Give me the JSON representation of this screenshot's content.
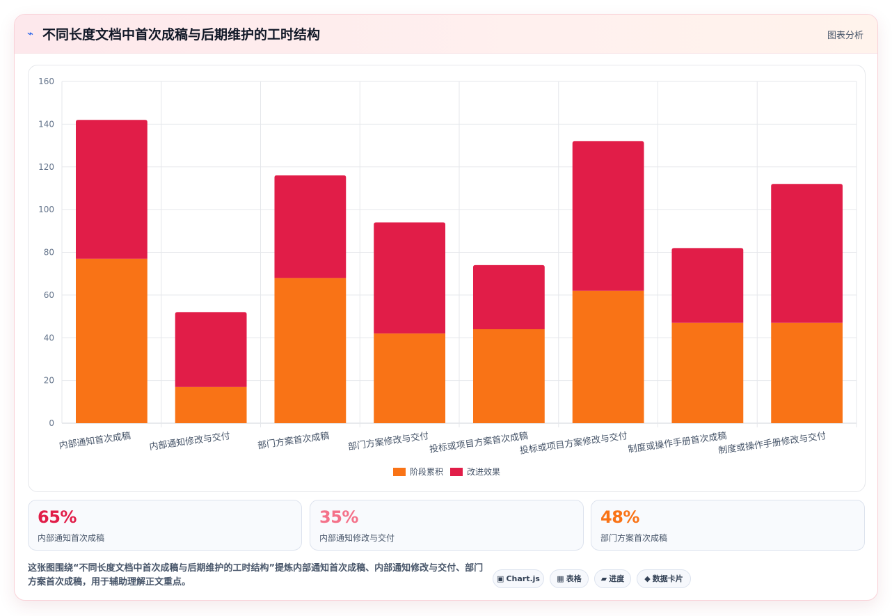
{
  "header": {
    "icon": "⌁",
    "title": "不同长度文档中首次成稿与后期维护的工时结构",
    "tag": "图表分析"
  },
  "chart_data": {
    "type": "bar",
    "stacked": true,
    "categories": [
      "内部通知首次成稿",
      "内部通知修改与交付",
      "部门方案首次成稿",
      "部门方案修改与交付",
      "投标或项目方案首次成稿",
      "投标或项目方案修改与交付",
      "制度或操作手册首次成稿",
      "制度或操作手册修改与交付"
    ],
    "series": [
      {
        "name": "阶段累积",
        "color": "#f97316",
        "values": [
          77,
          17,
          68,
          42,
          44,
          62,
          47,
          47
        ]
      },
      {
        "name": "改进效果",
        "color": "#e11d48",
        "values": [
          65,
          35,
          48,
          52,
          30,
          70,
          35,
          65
        ]
      }
    ],
    "ylim": [
      0,
      160
    ],
    "yticks": [
      0,
      20,
      40,
      60,
      80,
      100,
      120,
      140,
      160
    ],
    "grid": true,
    "legend": "bottom"
  },
  "kpis": [
    {
      "value": "65%",
      "label": "内部通知首次成稿",
      "color": "#e11d48"
    },
    {
      "value": "35%",
      "label": "内部通知修改与交付",
      "color": "#f47189"
    },
    {
      "value": "48%",
      "label": "部门方案首次成稿",
      "color": "#f97316"
    }
  ],
  "summary": "这张图围绕“不同长度文档中首次成稿与后期维护的工时结构”提炼内部通知首次成稿、内部通知修改与交付、部门方案首次成稿，用于辅助理解正文重点。",
  "badges": [
    {
      "icon": "▣",
      "label": "Chart.js"
    },
    {
      "icon": "▦",
      "label": "表格"
    },
    {
      "icon": "▰",
      "label": "进度"
    },
    {
      "icon": "◆",
      "label": "数据卡片"
    }
  ]
}
